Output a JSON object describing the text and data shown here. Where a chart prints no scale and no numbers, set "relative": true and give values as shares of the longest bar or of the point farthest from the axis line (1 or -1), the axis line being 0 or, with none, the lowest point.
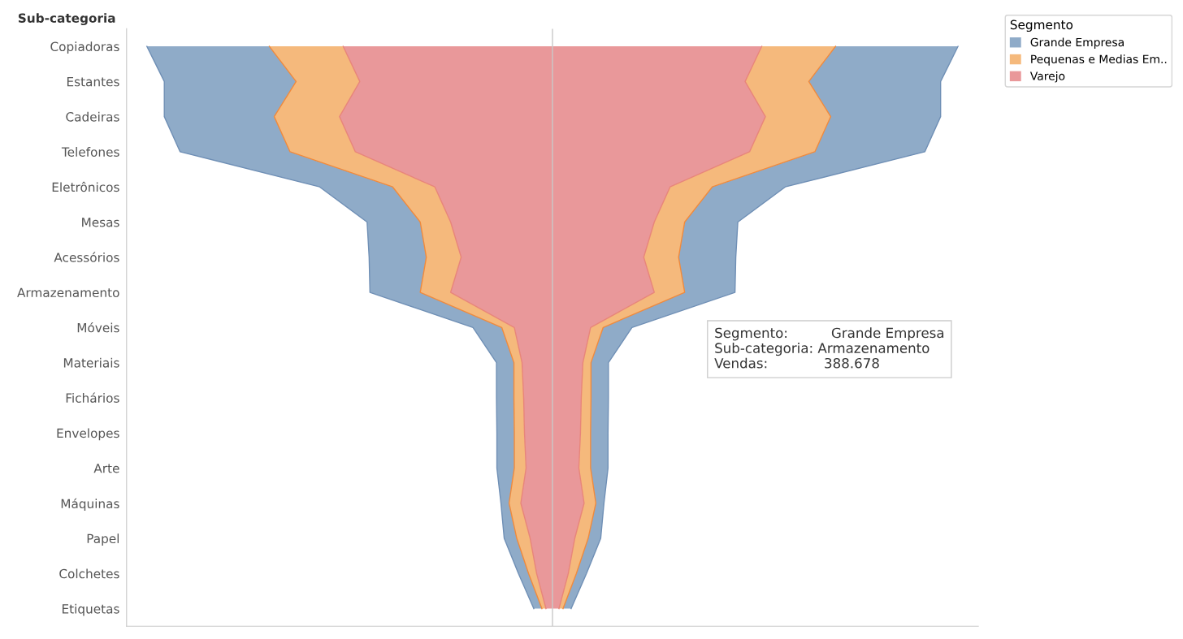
{
  "chart_data": {
    "type": "area",
    "orientation": "horizontal",
    "stacked": true,
    "relative": true,
    "ylabel": "Sub-categoria",
    "legend_title": "Segmento",
    "legend": "right",
    "categories": [
      "Copiadoras",
      "Estantes",
      "Cadeiras",
      "Telefones",
      "Eletrônicos",
      "Mesas",
      "Acessórios",
      "Armazenamento",
      "Móveis",
      "Materiais",
      "Fichários",
      "Envelopes",
      "Arte",
      "Máquinas",
      "Papel",
      "Colchetes",
      "Etiquetas"
    ],
    "series": [
      {
        "name": "Varejo",
        "color": "#e9989a",
        "values": [
          0.516,
          0.475,
          0.525,
          0.486,
          0.29,
          0.251,
          0.225,
          0.251,
          0.094,
          0.075,
          0.071,
          0.069,
          0.065,
          0.078,
          0.055,
          0.039,
          0.016
        ]
      },
      {
        "name": "Pequenas e Medias Em..",
        "color": "#f5b97c",
        "values": [
          0.182,
          0.157,
          0.161,
          0.161,
          0.104,
          0.075,
          0.086,
          0.075,
          0.031,
          0.02,
          0.024,
          0.025,
          0.029,
          0.029,
          0.033,
          0.02,
          0.01
        ]
      },
      {
        "name": "Grande Empresa",
        "color": "#8fabc8",
        "values": [
          0.302,
          0.325,
          0.271,
          0.271,
          0.18,
          0.131,
          0.141,
          0.124,
          0.071,
          0.043,
          0.043,
          0.043,
          0.043,
          0.02,
          0.031,
          0.025,
          0.02
        ]
      }
    ],
    "annotations": [
      "Segmento:          Grande Empresa\nSub-categoria: Armazenamento\nVendas:             388.678"
    ]
  }
}
